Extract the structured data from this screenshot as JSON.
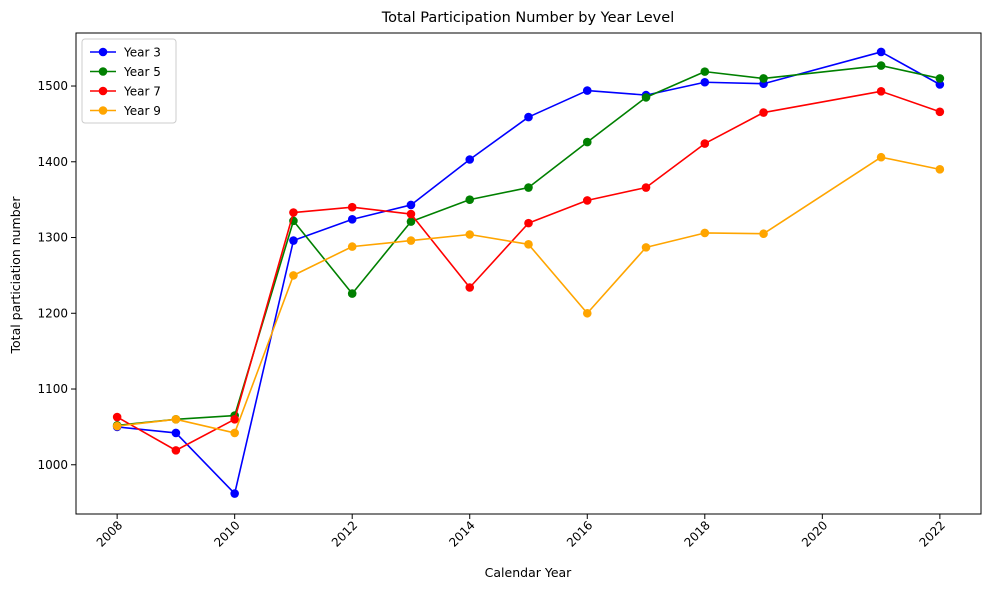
{
  "chart_data": {
    "type": "line",
    "title": "Total Participation Number by Year Level",
    "xlabel": "Calendar Year",
    "ylabel": "Total particiation number",
    "x": [
      2008,
      2009,
      2010,
      2011,
      2012,
      2013,
      2014,
      2015,
      2016,
      2017,
      2018,
      2019,
      2021,
      2022
    ],
    "xlim": [
      2007.3,
      2022.7
    ],
    "ylim": [
      935,
      1570
    ],
    "xticks": [
      "2008",
      "2010",
      "2012",
      "2014",
      "2016",
      "2018",
      "2020",
      "2022"
    ],
    "yticks": [
      "1000",
      "1100",
      "1200",
      "1300",
      "1400",
      "1500"
    ],
    "grid": false,
    "legend_position": "top-left",
    "series": [
      {
        "name": "Year 3",
        "color": "#0000ff",
        "values": [
          1050,
          1042,
          962,
          1296,
          1324,
          1343,
          1403,
          1459,
          1494,
          1488,
          1505,
          1503,
          1545,
          1502
        ]
      },
      {
        "name": "Year 5",
        "color": "#008000",
        "values": [
          1052,
          1060,
          1065,
          1322,
          1226,
          1321,
          1350,
          1366,
          1426,
          1485,
          1519,
          1510,
          1527,
          1510
        ]
      },
      {
        "name": "Year 7",
        "color": "#ff0000",
        "values": [
          1063,
          1019,
          1060,
          1333,
          1340,
          1331,
          1234,
          1319,
          1349,
          1366,
          1424,
          1465,
          1493,
          1466
        ]
      },
      {
        "name": "Year 9",
        "color": "#ffa500",
        "values": [
          1051,
          1060,
          1042,
          1250,
          1288,
          1296,
          1304,
          1291,
          1200,
          1287,
          1306,
          1305,
          1406,
          1390
        ]
      }
    ]
  }
}
